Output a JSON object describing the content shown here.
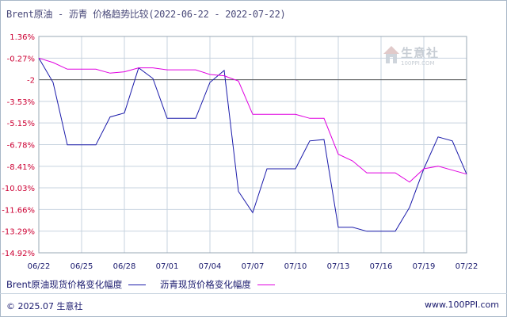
{
  "title": "Brent原油 - 沥青 价格趋势比较(2022-06-22 - 2022-07-22)",
  "watermark": {
    "brand": "生意社",
    "url": "100PPI.COM"
  },
  "footer": {
    "copyright": "© 2025.07 生意社",
    "site": "www.100PPI.com"
  },
  "colors": {
    "brent": "#1a1aaa",
    "asphalt": "#e000e0",
    "axis_label": "#cc0033",
    "grid": "#c7d3df"
  },
  "chart_data": {
    "type": "line",
    "title": "Brent原油 - 沥青 价格趋势比较(2022-06-22 - 2022-07-22)",
    "ylim": [
      -14.92,
      1.36
    ],
    "yticks": [
      "1.36%",
      "-0.27%",
      "-2",
      "-3.53%",
      "-5.15%",
      "-6.78%",
      "-8.41%",
      "-10.03%",
      "-11.66%",
      "-13.29%",
      "-14.92%"
    ],
    "ytick_values": [
      1.36,
      -0.27,
      -1.9,
      -3.53,
      -5.15,
      -6.78,
      -8.41,
      -10.03,
      -11.66,
      -13.29,
      -14.92
    ],
    "reference_line": -1.9,
    "xlim": [
      0,
      30
    ],
    "xticks": [
      "06/22",
      "06/25",
      "06/28",
      "07/01",
      "07/04",
      "07/07",
      "07/10",
      "07/13",
      "07/16",
      "07/19",
      "07/22"
    ],
    "xtick_positions": [
      0,
      3,
      6,
      9,
      12,
      15,
      18,
      21,
      24,
      27,
      30
    ],
    "grid": true,
    "legend_placement": "bottom",
    "series": [
      {
        "name": "Brent原油现货价格变化幅度",
        "color": "#1a1aaa",
        "points": [
          [
            0,
            -0.27
          ],
          [
            1,
            -2.1
          ],
          [
            2,
            -6.8
          ],
          [
            3,
            -6.8
          ],
          [
            4,
            -6.8
          ],
          [
            5,
            -4.7
          ],
          [
            6,
            -4.4
          ],
          [
            7,
            -1.0
          ],
          [
            8,
            -1.8
          ],
          [
            9,
            -4.8
          ],
          [
            10,
            -4.8
          ],
          [
            11,
            -4.8
          ],
          [
            12,
            -2.1
          ],
          [
            13,
            -1.2
          ],
          [
            14,
            -10.3
          ],
          [
            15,
            -11.9
          ],
          [
            16,
            -8.6
          ],
          [
            17,
            -8.6
          ],
          [
            18,
            -8.6
          ],
          [
            19,
            -6.5
          ],
          [
            20,
            -6.4
          ],
          [
            21,
            -13.0
          ],
          [
            22,
            -13.0
          ],
          [
            23,
            -13.3
          ],
          [
            24,
            -13.3
          ],
          [
            25,
            -13.3
          ],
          [
            26,
            -11.5
          ],
          [
            27,
            -8.6
          ],
          [
            28,
            -6.2
          ],
          [
            29,
            -6.5
          ],
          [
            30,
            -9.0
          ]
        ]
      },
      {
        "name": "沥青现货价格变化幅度",
        "color": "#e000e0",
        "points": [
          [
            0,
            -0.27
          ],
          [
            1,
            -0.6
          ],
          [
            2,
            -1.1
          ],
          [
            3,
            -1.1
          ],
          [
            4,
            -1.1
          ],
          [
            5,
            -1.4
          ],
          [
            6,
            -1.3
          ],
          [
            7,
            -1.0
          ],
          [
            8,
            -1.0
          ],
          [
            9,
            -1.15
          ],
          [
            10,
            -1.15
          ],
          [
            11,
            -1.15
          ],
          [
            12,
            -1.5
          ],
          [
            13,
            -1.6
          ],
          [
            14,
            -2.0
          ],
          [
            15,
            -4.5
          ],
          [
            16,
            -4.5
          ],
          [
            17,
            -4.5
          ],
          [
            18,
            -4.5
          ],
          [
            19,
            -4.8
          ],
          [
            20,
            -4.8
          ],
          [
            21,
            -7.5
          ],
          [
            22,
            -8.0
          ],
          [
            23,
            -8.9
          ],
          [
            24,
            -8.9
          ],
          [
            25,
            -8.9
          ],
          [
            26,
            -9.6
          ],
          [
            27,
            -8.6
          ],
          [
            28,
            -8.4
          ],
          [
            29,
            -8.7
          ],
          [
            30,
            -9.0
          ]
        ]
      }
    ]
  }
}
